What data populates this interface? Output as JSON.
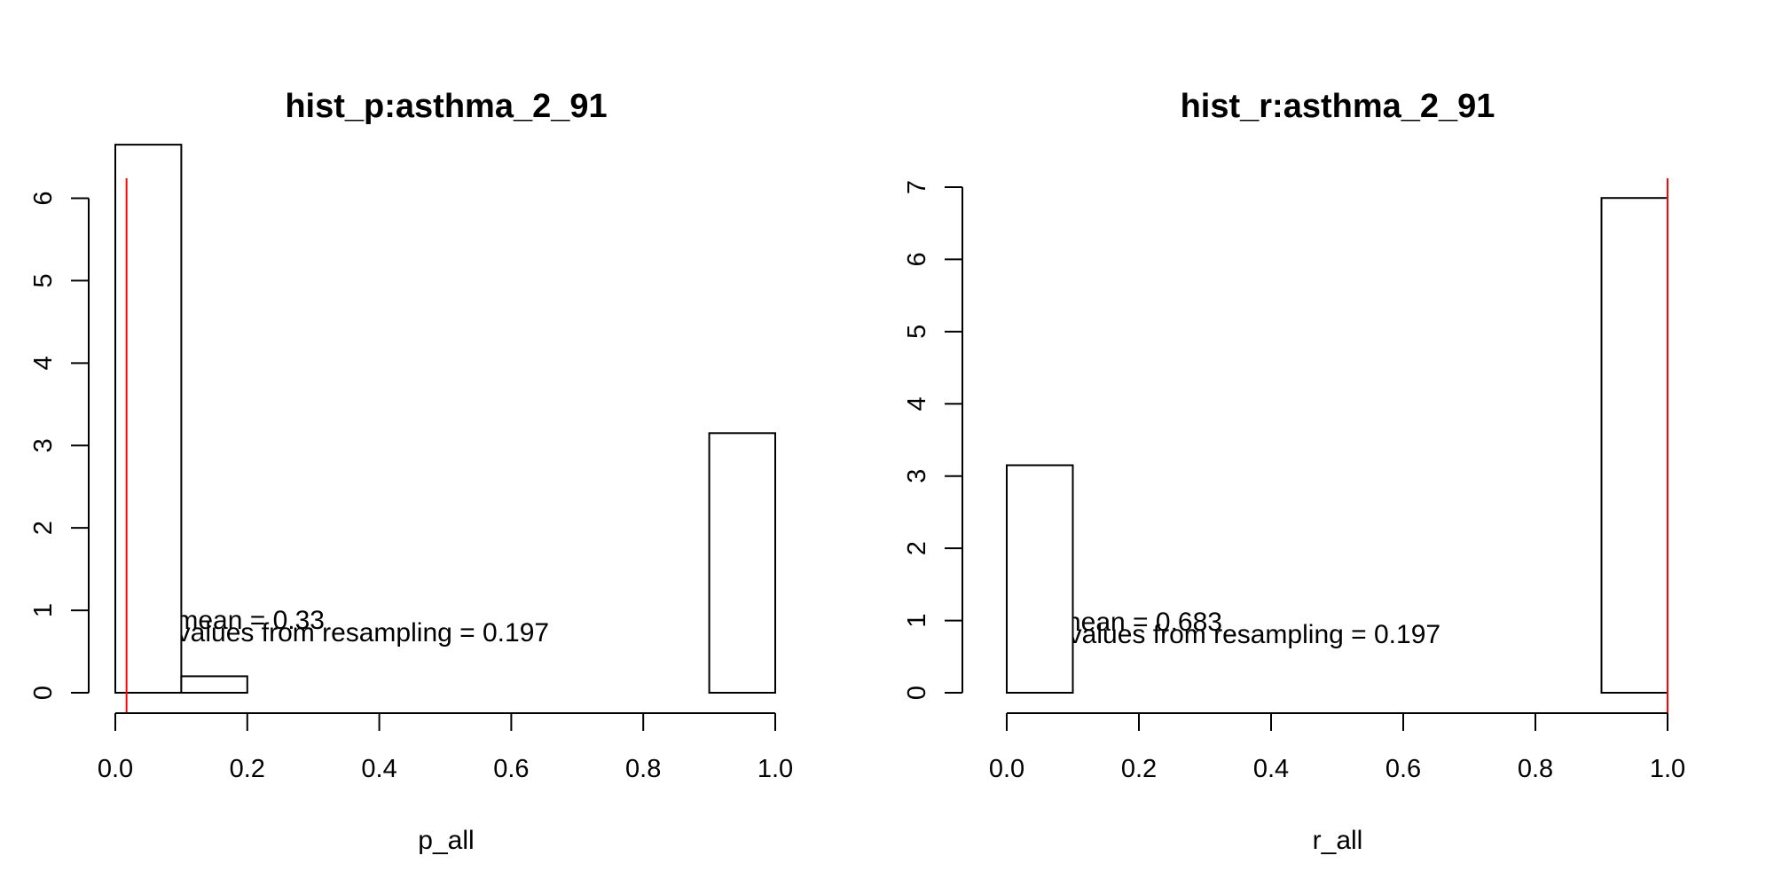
{
  "chart_data": [
    {
      "type": "bar",
      "title": "hist_p:asthma_2_91",
      "xlabel": "p_all",
      "ylabel": "",
      "xlim": [
        0,
        1
      ],
      "ylim": [
        0,
        6.65
      ],
      "x_ticks": [
        "0.0",
        "0.2",
        "0.4",
        "0.6",
        "0.8",
        "1.0"
      ],
      "y_ticks": [
        "0",
        "1",
        "2",
        "3",
        "4",
        "5",
        "6"
      ],
      "bins": [
        {
          "x0": 0.0,
          "x1": 0.1,
          "value": 6.65
        },
        {
          "x0": 0.1,
          "x1": 0.2,
          "value": 0.2
        },
        {
          "x0": 0.2,
          "x1": 0.3,
          "value": 0
        },
        {
          "x0": 0.3,
          "x1": 0.4,
          "value": 0
        },
        {
          "x0": 0.4,
          "x1": 0.5,
          "value": 0
        },
        {
          "x0": 0.5,
          "x1": 0.6,
          "value": 0
        },
        {
          "x0": 0.6,
          "x1": 0.7,
          "value": 0
        },
        {
          "x0": 0.7,
          "x1": 0.8,
          "value": 0
        },
        {
          "x0": 0.8,
          "x1": 0.9,
          "value": 0
        },
        {
          "x0": 0.9,
          "x1": 1.0,
          "value": 3.15
        }
      ],
      "vline": {
        "x": 0.017,
        "color": "#ff0000"
      },
      "annotations": [
        "p_mean = 0.33",
        "pvalues from resampling = 0.197"
      ],
      "bar_fill": "#ffffff",
      "bar_stroke": "#000000"
    },
    {
      "type": "bar",
      "title": "hist_r:asthma_2_91",
      "xlabel": "r_all",
      "ylabel": "",
      "xlim": [
        0,
        1
      ],
      "ylim": [
        0,
        7
      ],
      "x_ticks": [
        "0.0",
        "0.2",
        "0.4",
        "0.6",
        "0.8",
        "1.0"
      ],
      "y_ticks": [
        "0",
        "1",
        "2",
        "3",
        "4",
        "5",
        "6",
        "7"
      ],
      "bins": [
        {
          "x0": 0.0,
          "x1": 0.1,
          "value": 3.15
        },
        {
          "x0": 0.1,
          "x1": 0.2,
          "value": 0
        },
        {
          "x0": 0.2,
          "x1": 0.3,
          "value": 0
        },
        {
          "x0": 0.3,
          "x1": 0.4,
          "value": 0
        },
        {
          "x0": 0.4,
          "x1": 0.5,
          "value": 0
        },
        {
          "x0": 0.5,
          "x1": 0.6,
          "value": 0
        },
        {
          "x0": 0.6,
          "x1": 0.7,
          "value": 0
        },
        {
          "x0": 0.7,
          "x1": 0.8,
          "value": 0
        },
        {
          "x0": 0.8,
          "x1": 0.9,
          "value": 0
        },
        {
          "x0": 0.9,
          "x1": 1.0,
          "value": 6.85
        }
      ],
      "vline": {
        "x": 1.0,
        "color": "#ff0000"
      },
      "annotations": [
        "r_mean = 0.683",
        "pvalues from resampling = 0.197"
      ],
      "bar_fill": "#ffffff",
      "bar_stroke": "#000000"
    }
  ]
}
